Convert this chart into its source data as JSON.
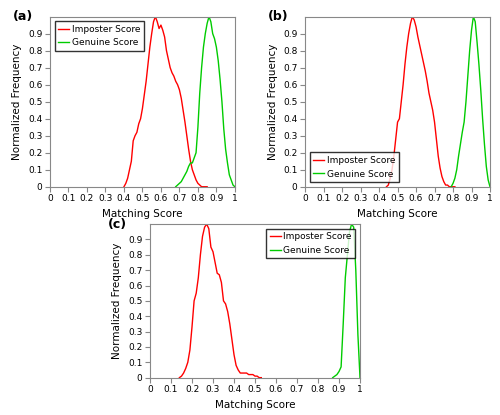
{
  "subplot_labels": [
    "(a)",
    "(b)",
    "(c)"
  ],
  "xlabel": "Matching Score",
  "ylabel": "Normalized Frequency",
  "legend_entries": [
    "Imposter Score",
    "Genuine Score"
  ],
  "imposter_color": "#ff0000",
  "genuine_color": "#00cc00",
  "ylim": [
    0,
    1.0
  ],
  "xlim": [
    0,
    1.0
  ],
  "xticks": [
    0,
    0.1,
    0.2,
    0.3,
    0.4,
    0.5,
    0.6,
    0.7,
    0.8,
    0.9,
    1.0
  ],
  "yticks": [
    0,
    0.1,
    0.2,
    0.3,
    0.4,
    0.5,
    0.6,
    0.7,
    0.8,
    0.9
  ],
  "xtick_labels": [
    "0",
    "0.1",
    "0.2",
    "0.3",
    "0.4",
    "0.5",
    "0.6",
    "0.7",
    "0.8",
    "0.9",
    "1"
  ],
  "ytick_labels": [
    "0",
    "0.1",
    "0.2",
    "0.3",
    "0.4",
    "0.5",
    "0.6",
    "0.7",
    "0.8",
    "0.9"
  ],
  "a_imposter_x": [
    0.4,
    0.41,
    0.42,
    0.43,
    0.44,
    0.45,
    0.46,
    0.47,
    0.48,
    0.49,
    0.5,
    0.51,
    0.52,
    0.53,
    0.54,
    0.55,
    0.56,
    0.57,
    0.58,
    0.59,
    0.6,
    0.61,
    0.62,
    0.63,
    0.64,
    0.65,
    0.66,
    0.67,
    0.68,
    0.69,
    0.7,
    0.71,
    0.72,
    0.73,
    0.74,
    0.75,
    0.76,
    0.77,
    0.78,
    0.79,
    0.8,
    0.81,
    0.82,
    0.83,
    0.84,
    0.85
  ],
  "a_imposter_y": [
    0.0,
    0.02,
    0.05,
    0.1,
    0.15,
    0.27,
    0.3,
    0.32,
    0.37,
    0.4,
    0.46,
    0.54,
    0.62,
    0.72,
    0.82,
    0.9,
    0.97,
    1.0,
    0.97,
    0.93,
    0.95,
    0.92,
    0.88,
    0.8,
    0.75,
    0.7,
    0.67,
    0.65,
    0.62,
    0.6,
    0.57,
    0.52,
    0.45,
    0.38,
    0.3,
    0.22,
    0.15,
    0.1,
    0.07,
    0.04,
    0.02,
    0.01,
    0.0,
    0.0,
    0.0,
    0.0
  ],
  "a_genuine_x": [
    0.68,
    0.69,
    0.7,
    0.71,
    0.72,
    0.73,
    0.74,
    0.75,
    0.76,
    0.77,
    0.78,
    0.79,
    0.8,
    0.81,
    0.82,
    0.83,
    0.84,
    0.85,
    0.86,
    0.87,
    0.88,
    0.89,
    0.9,
    0.91,
    0.92,
    0.93,
    0.94,
    0.95,
    0.96,
    0.97,
    0.98,
    0.99,
    1.0
  ],
  "a_genuine_y": [
    0.0,
    0.01,
    0.02,
    0.03,
    0.05,
    0.07,
    0.09,
    0.12,
    0.14,
    0.14,
    0.17,
    0.2,
    0.35,
    0.55,
    0.7,
    0.82,
    0.9,
    0.96,
    1.0,
    0.97,
    0.9,
    0.87,
    0.82,
    0.74,
    0.63,
    0.5,
    0.34,
    0.22,
    0.14,
    0.07,
    0.04,
    0.01,
    0.0
  ],
  "b_imposter_x": [
    0.44,
    0.45,
    0.46,
    0.47,
    0.48,
    0.49,
    0.5,
    0.51,
    0.52,
    0.53,
    0.54,
    0.55,
    0.56,
    0.57,
    0.58,
    0.59,
    0.6,
    0.61,
    0.62,
    0.63,
    0.64,
    0.65,
    0.66,
    0.67,
    0.68,
    0.69,
    0.7,
    0.71,
    0.72,
    0.73,
    0.74,
    0.75,
    0.76,
    0.77,
    0.78,
    0.79,
    0.8,
    0.81
  ],
  "b_imposter_y": [
    0.0,
    0.01,
    0.05,
    0.1,
    0.18,
    0.28,
    0.38,
    0.4,
    0.5,
    0.6,
    0.72,
    0.82,
    0.9,
    0.96,
    1.0,
    0.98,
    0.94,
    0.88,
    0.83,
    0.78,
    0.73,
    0.68,
    0.62,
    0.55,
    0.5,
    0.45,
    0.38,
    0.28,
    0.18,
    0.11,
    0.06,
    0.03,
    0.01,
    0.01,
    0.0,
    0.0,
    0.0,
    0.0
  ],
  "b_genuine_x": [
    0.79,
    0.8,
    0.81,
    0.82,
    0.83,
    0.84,
    0.85,
    0.86,
    0.87,
    0.88,
    0.89,
    0.9,
    0.91,
    0.92,
    0.93,
    0.94,
    0.95,
    0.96,
    0.97,
    0.98,
    0.99,
    1.0
  ],
  "b_genuine_y": [
    0.0,
    0.02,
    0.05,
    0.1,
    0.18,
    0.25,
    0.32,
    0.38,
    0.5,
    0.65,
    0.8,
    0.92,
    1.0,
    0.97,
    0.85,
    0.72,
    0.57,
    0.4,
    0.25,
    0.12,
    0.04,
    0.0
  ],
  "c_imposter_x": [
    0.14,
    0.15,
    0.16,
    0.17,
    0.18,
    0.19,
    0.2,
    0.21,
    0.22,
    0.23,
    0.24,
    0.25,
    0.26,
    0.27,
    0.28,
    0.29,
    0.3,
    0.31,
    0.32,
    0.33,
    0.34,
    0.35,
    0.36,
    0.37,
    0.38,
    0.39,
    0.4,
    0.41,
    0.42,
    0.43,
    0.44,
    0.45,
    0.46,
    0.47,
    0.48,
    0.49,
    0.5,
    0.51,
    0.52,
    0.53
  ],
  "c_imposter_y": [
    0.0,
    0.01,
    0.03,
    0.06,
    0.1,
    0.18,
    0.33,
    0.5,
    0.55,
    0.65,
    0.8,
    0.92,
    0.98,
    1.0,
    0.97,
    0.85,
    0.82,
    0.75,
    0.68,
    0.67,
    0.62,
    0.5,
    0.48,
    0.43,
    0.35,
    0.25,
    0.15,
    0.08,
    0.05,
    0.03,
    0.03,
    0.03,
    0.03,
    0.02,
    0.02,
    0.02,
    0.01,
    0.01,
    0.0,
    0.0
  ],
  "c_genuine_x": [
    0.87,
    0.88,
    0.89,
    0.9,
    0.91,
    0.92,
    0.93,
    0.94,
    0.95,
    0.96,
    0.97,
    0.98,
    0.99,
    1.0
  ],
  "c_genuine_y": [
    0.0,
    0.01,
    0.02,
    0.04,
    0.07,
    0.35,
    0.65,
    0.8,
    0.95,
    1.0,
    0.98,
    0.7,
    0.28,
    0.0
  ],
  "line_width": 1.0,
  "tick_fontsize": 6.5,
  "label_fontsize": 7.5,
  "legend_fontsize": 6.5,
  "panel_label_fontsize": 9,
  "spine_color": "#888888",
  "background_color": "#ffffff"
}
